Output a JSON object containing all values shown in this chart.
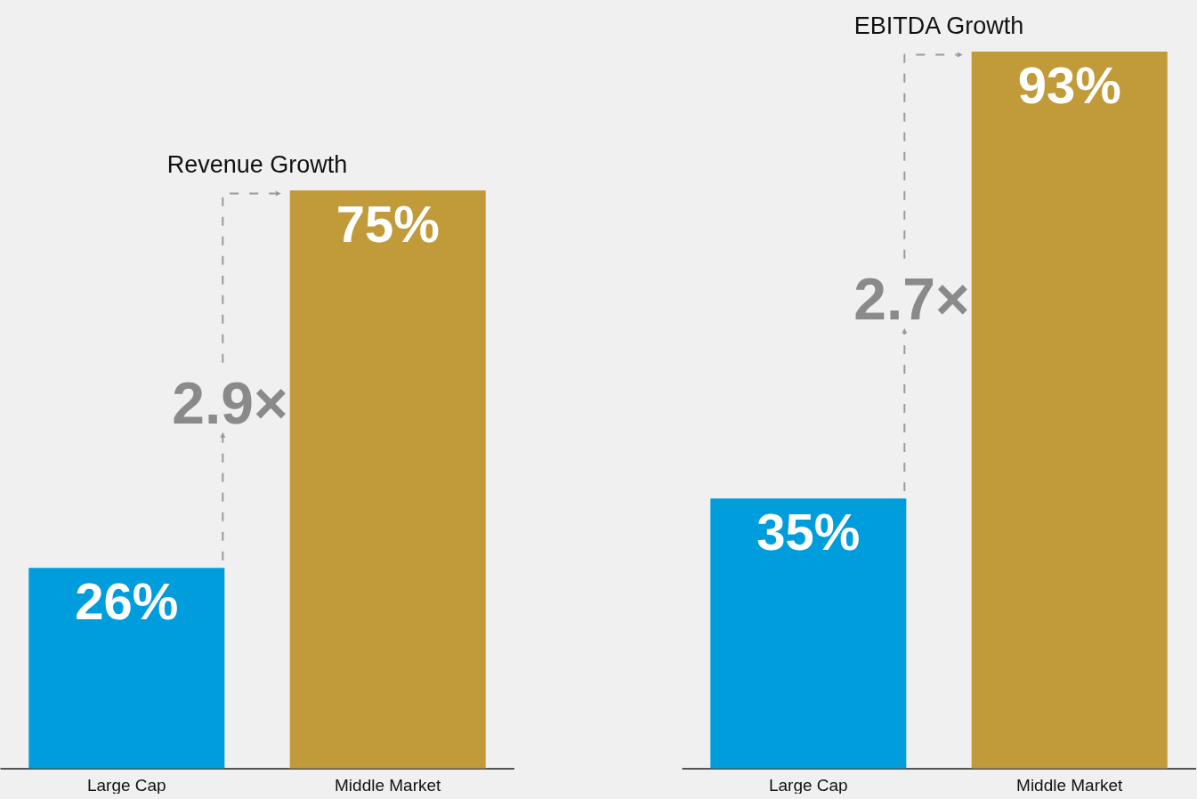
{
  "chart_data": [
    {
      "type": "bar",
      "title": "Revenue Growth",
      "categories": [
        "Large Cap",
        "Middle Market"
      ],
      "values": [
        26,
        75
      ],
      "colors": [
        "#009ddc",
        "#c19a3a"
      ],
      "value_labels": [
        "26%",
        "75%"
      ],
      "annotations": [
        "2.9×"
      ]
    },
    {
      "type": "bar",
      "title": "EBITDA Growth",
      "categories": [
        "Large Cap",
        "Middle Market"
      ],
      "values": [
        35,
        93
      ],
      "colors": [
        "#009ddc",
        "#c19a3a"
      ],
      "value_labels": [
        "35%",
        "93%"
      ],
      "annotations": [
        "2.7×"
      ]
    }
  ]
}
